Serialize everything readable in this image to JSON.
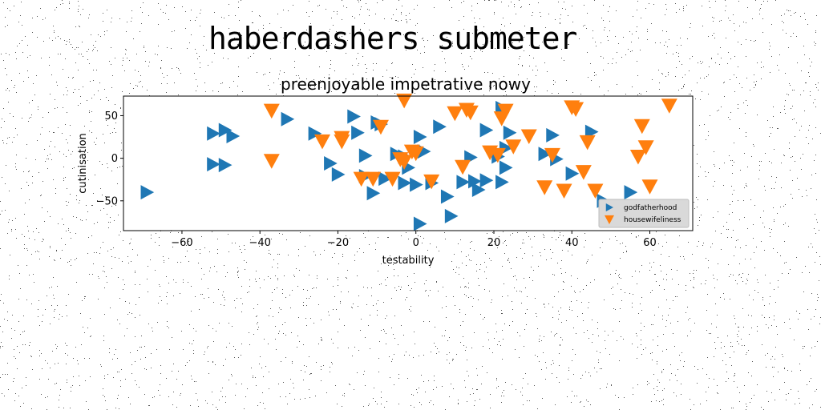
{
  "figure": {
    "suptitle": "haberdashers submeter"
  },
  "chart_data": {
    "type": "scatter",
    "title": "preenjoyable impetrative nowy",
    "xlabel": "testability",
    "ylabel": "cutinisation",
    "xlim": [
      -75,
      71
    ],
    "ylim": [
      -85,
      73
    ],
    "xticks": [
      -60,
      -40,
      -20,
      0,
      20,
      40,
      60
    ],
    "yticks": [
      -50,
      0,
      50
    ],
    "grid": false,
    "legend_position": "lower-right",
    "series": [
      {
        "name": "godfatherhood",
        "color": "#1f77b4",
        "marker": "triangle-right",
        "points": [
          [
            -69,
            -40
          ],
          [
            -52,
            29
          ],
          [
            -49,
            33
          ],
          [
            -47,
            26
          ],
          [
            -52,
            -7
          ],
          [
            -49,
            -8
          ],
          [
            -33,
            46
          ],
          [
            -26,
            29
          ],
          [
            -22,
            -6
          ],
          [
            -20,
            -19
          ],
          [
            -16,
            49
          ],
          [
            -15,
            30
          ],
          [
            -13,
            3
          ],
          [
            -10,
            42
          ],
          [
            -9,
            40
          ],
          [
            -13,
            -21
          ],
          [
            -11,
            -41
          ],
          [
            -8,
            -24
          ],
          [
            -5,
            5
          ],
          [
            -3,
            2
          ],
          [
            -3,
            -29
          ],
          [
            -2,
            -11
          ],
          [
            0,
            -31
          ],
          [
            1,
            25
          ],
          [
            2,
            8
          ],
          [
            1,
            -77
          ],
          [
            4,
            -29
          ],
          [
            6,
            37
          ],
          [
            8,
            -45
          ],
          [
            9,
            -68
          ],
          [
            12,
            -28
          ],
          [
            14,
            1
          ],
          [
            15,
            -27
          ],
          [
            16,
            -37
          ],
          [
            18,
            33
          ],
          [
            18,
            -26
          ],
          [
            21,
            2
          ],
          [
            22,
            -28
          ],
          [
            23,
            -11
          ],
          [
            23,
            12
          ],
          [
            24,
            30
          ],
          [
            33,
            5
          ],
          [
            35,
            27
          ],
          [
            36,
            -1
          ],
          [
            40,
            -18
          ],
          [
            45,
            31
          ],
          [
            48,
            -50
          ],
          [
            55,
            -40
          ],
          [
            22,
            59
          ]
        ]
      },
      {
        "name": "housewifeliness",
        "color": "#ff7f0e",
        "marker": "triangle-down",
        "points": [
          [
            -37,
            56
          ],
          [
            -37,
            -3
          ],
          [
            -24,
            20
          ],
          [
            -19,
            20
          ],
          [
            -19,
            24
          ],
          [
            -14,
            -24
          ],
          [
            -11,
            -24
          ],
          [
            -9,
            37
          ],
          [
            -6,
            -24
          ],
          [
            -3,
            -4
          ],
          [
            -3,
            68
          ],
          [
            -1,
            8
          ],
          [
            4,
            -27
          ],
          [
            10,
            53
          ],
          [
            12,
            -10
          ],
          [
            13,
            57
          ],
          [
            14,
            54
          ],
          [
            19,
            7
          ],
          [
            21,
            4
          ],
          [
            22,
            47
          ],
          [
            23,
            56
          ],
          [
            25,
            14
          ],
          [
            29,
            26
          ],
          [
            33,
            -34
          ],
          [
            35,
            4
          ],
          [
            38,
            -38
          ],
          [
            40,
            60
          ],
          [
            41,
            58
          ],
          [
            43,
            -16
          ],
          [
            44,
            19
          ],
          [
            46,
            -38
          ],
          [
            57,
            2
          ],
          [
            58,
            38
          ],
          [
            59,
            13
          ],
          [
            60,
            -33
          ],
          [
            65,
            62
          ],
          [
            -4,
            -1
          ],
          [
            0,
            6
          ]
        ]
      }
    ]
  }
}
